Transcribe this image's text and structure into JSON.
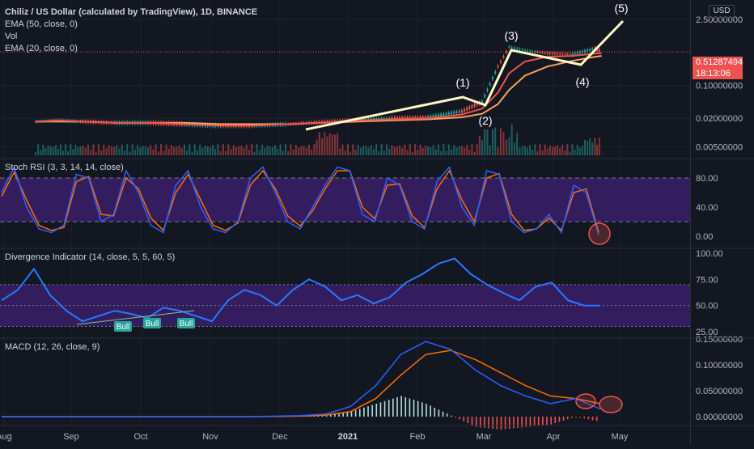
{
  "header": {
    "symbol_title": "Chiliz / US Dollar (calculated by TradingView), 1D, BINANCE",
    "indicators": [
      "EMA (50, close, 0)",
      "Vol",
      "EMA (20, close, 0)"
    ],
    "currency_button": "USD"
  },
  "colors": {
    "background": "#131722",
    "grid": "#1e222d",
    "up": "#26a69a",
    "down": "#ef5350",
    "ema50": "#f7a35c",
    "ema20": "#ef5350",
    "wave": "#fff8c4",
    "rsi_k": "#2962ff",
    "rsi_d": "#ff6d00",
    "band_fill": "#3a1e6a",
    "divergence": "#2979ff",
    "macd_line": "#2962ff",
    "signal_line": "#ff6d00",
    "highlight_circle": "#ef5350"
  },
  "price_panel": {
    "last_price": "0.51287494",
    "countdown": "18:13:06"
  },
  "chart_data": [
    {
      "type": "line",
      "name": "price",
      "scale": "log",
      "title": "Chiliz / US Dollar (calculated by TradingView), 1D, BINANCE",
      "x": [
        "2020-08-15",
        "2020-08-25",
        "2020-09-05",
        "2020-09-20",
        "2020-10-05",
        "2020-10-20",
        "2020-11-05",
        "2020-11-20",
        "2020-12-05",
        "2020-12-20",
        "2021-01-05",
        "2021-01-20",
        "2021-02-05",
        "2021-02-20",
        "2021-03-01",
        "2021-03-08",
        "2021-03-13",
        "2021-03-20",
        "2021-03-30",
        "2021-04-10",
        "2021-04-20",
        "2021-04-23"
      ],
      "values": [
        0.017,
        0.018,
        0.017,
        0.016,
        0.016,
        0.015,
        0.014,
        0.014,
        0.015,
        0.017,
        0.019,
        0.02,
        0.021,
        0.028,
        0.045,
        0.25,
        0.65,
        0.55,
        0.48,
        0.45,
        0.6,
        0.51287494
      ],
      "ema50": [
        0.017,
        0.017,
        0.017,
        0.016,
        0.016,
        0.016,
        0.015,
        0.015,
        0.015,
        0.016,
        0.017,
        0.018,
        0.019,
        0.021,
        0.025,
        0.04,
        0.08,
        0.16,
        0.25,
        0.33,
        0.4,
        0.42
      ],
      "ema20": [
        0.017,
        0.018,
        0.017,
        0.016,
        0.016,
        0.015,
        0.014,
        0.014,
        0.015,
        0.016,
        0.018,
        0.019,
        0.02,
        0.024,
        0.032,
        0.07,
        0.18,
        0.32,
        0.4,
        0.42,
        0.47,
        0.48
      ],
      "y_ticks": [
        "2.50000000",
        "0.10000000",
        "0.02000000",
        "0.00500000"
      ],
      "x_ticks": [
        "Aug",
        "Sep",
        "Oct",
        "Nov",
        "Dec",
        "2021",
        "Feb",
        "Mar",
        "Apr",
        "May"
      ],
      "grid": true
    },
    {
      "type": "line",
      "name": "Stoch RSI (3, 3, 14, 14, close)",
      "y_ticks": [
        "80.00",
        "40.00",
        "0.00"
      ],
      "ylim": [
        0,
        100
      ],
      "band": [
        20,
        80
      ],
      "k": [
        60,
        95,
        40,
        10,
        5,
        15,
        85,
        80,
        20,
        30,
        90,
        60,
        15,
        5,
        70,
        90,
        40,
        10,
        5,
        20,
        80,
        95,
        60,
        20,
        10,
        40,
        70,
        95,
        90,
        30,
        20,
        80,
        70,
        20,
        10,
        75,
        95,
        40,
        15,
        90,
        85,
        20,
        5,
        10,
        30,
        5,
        70,
        60,
        2
      ],
      "d": [
        55,
        88,
        50,
        15,
        8,
        12,
        75,
        82,
        30,
        28,
        80,
        65,
        25,
        8,
        60,
        85,
        50,
        15,
        8,
        18,
        70,
        90,
        65,
        28,
        14,
        35,
        65,
        90,
        90,
        40,
        24,
        70,
        72,
        28,
        12,
        65,
        90,
        50,
        20,
        80,
        86,
        30,
        8,
        10,
        25,
        8,
        60,
        65,
        5
      ]
    },
    {
      "type": "line",
      "name": "Divergence Indicator (14, close, 5, 5, 60, 5)",
      "y_ticks": [
        "100.00",
        "75.00",
        "50.00",
        "25.00"
      ],
      "ylim": [
        25,
        100
      ],
      "band": [
        30,
        70
      ],
      "values": [
        55,
        65,
        85,
        60,
        45,
        35,
        40,
        45,
        42,
        38,
        48,
        45,
        40,
        35,
        55,
        65,
        60,
        50,
        65,
        75,
        68,
        55,
        60,
        52,
        58,
        72,
        80,
        90,
        95,
        80,
        70,
        62,
        55,
        68,
        72,
        55,
        50,
        50
      ],
      "annotations": [
        "Bull",
        "Bull",
        "Bull"
      ]
    },
    {
      "type": "bar",
      "name": "MACD (12, 26, close, 9)",
      "y_ticks": [
        "0.15000000",
        "0.10000000",
        "0.05000000",
        "0.00000000"
      ],
      "ylim": [
        -0.01,
        0.16
      ],
      "macd": [
        0,
        0,
        0,
        0,
        0,
        0,
        0,
        0,
        0,
        0,
        0,
        0.001,
        0.002,
        0.005,
        0.02,
        0.06,
        0.12,
        0.145,
        0.13,
        0.09,
        0.06,
        0.04,
        0.025,
        0.035,
        0.015
      ],
      "signal": [
        0,
        0,
        0,
        0,
        0,
        0,
        0,
        0,
        0,
        0,
        0,
        0.0005,
        0.001,
        0.003,
        0.01,
        0.035,
        0.08,
        0.12,
        0.128,
        0.11,
        0.085,
        0.06,
        0.04,
        0.035,
        0.025
      ],
      "histogram": [
        0,
        0,
        0,
        0,
        0,
        0,
        0,
        0,
        0,
        0,
        0,
        0.0005,
        0.001,
        0.002,
        0.01,
        0.025,
        0.04,
        0.025,
        0.002,
        -0.02,
        -0.025,
        -0.02,
        -0.015,
        0,
        -0.01
      ]
    }
  ],
  "annotations": {
    "wave_labels": [
      "(1)",
      "(2)",
      "(3)",
      "(4)",
      "(5)"
    ],
    "bull_label": "Bull"
  }
}
